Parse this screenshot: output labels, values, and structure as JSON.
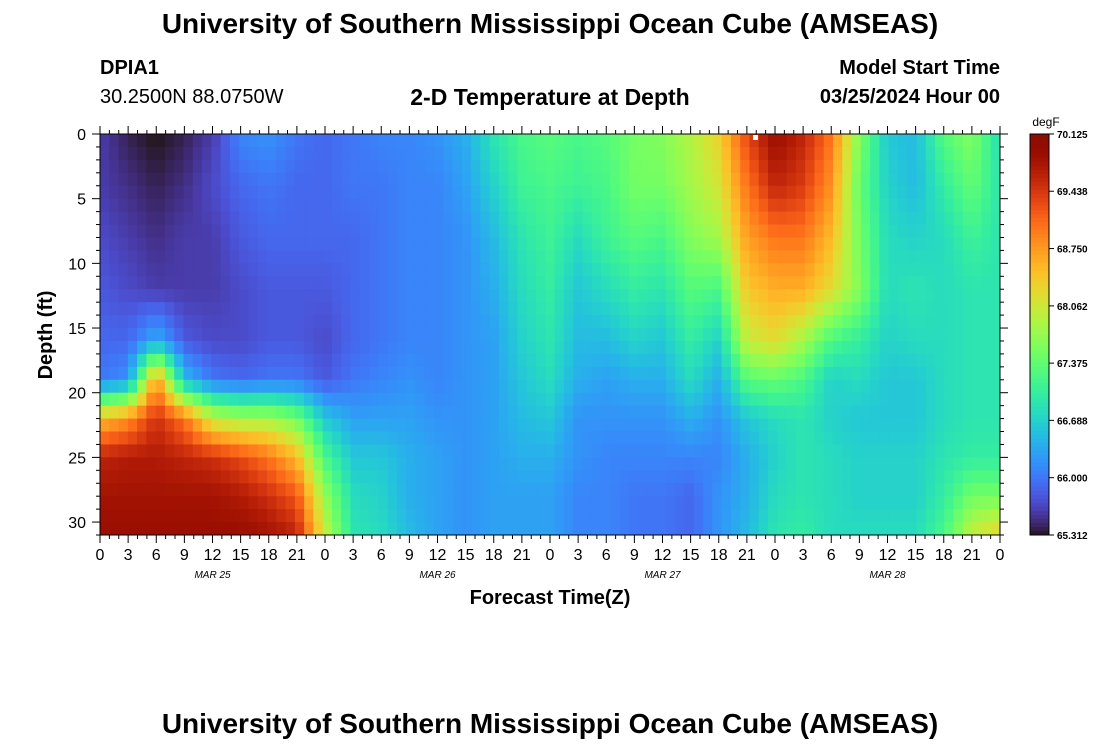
{
  "page": {
    "title_top": "University of Southern Mississippi Ocean Cube (AMSEAS)",
    "title_bottom": "University of Southern Mississippi Ocean Cube (AMSEAS)",
    "station_id": "DPIA1",
    "station_coords": "30.2500N  88.0750W",
    "plot_title": "2-D Temperature at Depth",
    "model_start_label": "Model Start Time",
    "model_start_value": "03/25/2024 Hour 00"
  },
  "chart_data": {
    "type": "heatmap",
    "xlabel": "Forecast Time(Z)",
    "ylabel": "Depth (ft)",
    "x_unit": "hours from 03/25/2024 00Z",
    "x_range": [
      0,
      96
    ],
    "ylim": [
      0,
      31
    ],
    "y_inverted": true,
    "x_tick_labels": [
      "0",
      "3",
      "6",
      "9",
      "12",
      "15",
      "18",
      "21",
      "0",
      "3",
      "6",
      "9",
      "12",
      "15",
      "18",
      "21",
      "0",
      "3",
      "6",
      "9",
      "12",
      "15",
      "18",
      "21",
      "0",
      "3",
      "6",
      "9",
      "12",
      "15",
      "18",
      "21",
      "0"
    ],
    "y_ticks": [
      0,
      5,
      10,
      15,
      20,
      25,
      30
    ],
    "date_labels": [
      {
        "text": "MAR 25",
        "hour": 12
      },
      {
        "text": "MAR 26",
        "hour": 36
      },
      {
        "text": "MAR 27",
        "hour": 60
      },
      {
        "text": "MAR 28",
        "hour": 84
      }
    ],
    "colorbar": {
      "unit": "degF",
      "min": 65.312,
      "max": 70.125,
      "tick_labels": [
        "70.125",
        "69.438",
        "68.750",
        "68.062",
        "67.375",
        "66.688",
        "66.000",
        "65.312"
      ],
      "colormap": "turbo"
    },
    "grid": false,
    "temperature_degF_profiles": {
      "depths_ft": [
        0,
        4,
        8,
        12,
        16,
        19,
        22,
        25,
        28,
        31
      ],
      "hours": [
        0,
        3,
        6,
        9,
        12,
        15,
        18,
        21,
        24,
        27,
        30,
        33,
        36,
        39,
        42,
        45,
        48,
        51,
        54,
        57,
        60,
        63,
        66,
        69,
        72,
        75,
        78,
        81,
        84,
        87,
        90,
        93,
        96
      ],
      "values": [
        [
          65.6,
          65.6,
          65.7,
          65.8,
          65.9,
          66.0,
          68.5,
          69.6,
          69.8,
          69.9
        ],
        [
          65.4,
          65.5,
          65.6,
          65.7,
          65.9,
          66.2,
          68.8,
          69.7,
          69.8,
          69.9
        ],
        [
          65.3,
          65.4,
          65.5,
          65.6,
          66.4,
          68.8,
          69.5,
          69.7,
          69.8,
          69.9
        ],
        [
          65.4,
          65.5,
          65.6,
          65.6,
          65.8,
          66.5,
          69.0,
          69.6,
          69.8,
          69.9
        ],
        [
          65.6,
          65.7,
          65.6,
          65.6,
          65.7,
          66.0,
          68.0,
          69.5,
          69.8,
          69.9
        ],
        [
          66.1,
          65.9,
          65.8,
          65.7,
          65.7,
          65.9,
          67.8,
          69.3,
          69.7,
          69.9
        ],
        [
          66.2,
          66.0,
          65.9,
          65.8,
          65.8,
          66.0,
          67.8,
          69.0,
          69.5,
          69.8
        ],
        [
          66.0,
          65.9,
          65.9,
          65.8,
          65.8,
          66.0,
          67.5,
          68.5,
          69.2,
          69.6
        ],
        [
          65.9,
          65.9,
          65.9,
          65.8,
          65.7,
          65.8,
          66.6,
          67.2,
          67.7,
          68.0
        ],
        [
          66.0,
          66.0,
          65.9,
          65.9,
          65.9,
          66.0,
          66.3,
          66.6,
          66.8,
          66.9
        ],
        [
          66.1,
          66.0,
          66.0,
          66.0,
          66.0,
          66.1,
          66.3,
          66.6,
          66.7,
          66.8
        ],
        [
          66.1,
          66.1,
          66.1,
          66.1,
          66.1,
          66.2,
          66.3,
          66.4,
          66.4,
          66.5
        ],
        [
          66.2,
          66.1,
          66.1,
          66.1,
          66.1,
          66.1,
          66.2,
          66.3,
          66.3,
          66.3
        ],
        [
          66.4,
          66.3,
          66.2,
          66.2,
          66.2,
          66.2,
          66.2,
          66.2,
          66.2,
          66.2
        ],
        [
          66.9,
          66.7,
          66.5,
          66.4,
          66.3,
          66.3,
          66.3,
          66.3,
          66.3,
          66.3
        ],
        [
          67.2,
          67.1,
          66.9,
          66.8,
          66.7,
          66.6,
          66.5,
          66.4,
          66.3,
          66.3
        ],
        [
          67.3,
          67.2,
          67.1,
          67.0,
          66.9,
          66.8,
          66.6,
          66.4,
          66.3,
          66.3
        ],
        [
          67.2,
          67.1,
          66.8,
          66.6,
          66.5,
          66.4,
          66.2,
          66.2,
          66.1,
          66.1
        ],
        [
          67.3,
          67.2,
          67.1,
          66.8,
          66.5,
          66.3,
          66.2,
          66.1,
          66.1,
          66.1
        ],
        [
          67.5,
          67.5,
          67.3,
          67.0,
          66.7,
          66.4,
          66.2,
          66.1,
          66.0,
          66.0
        ],
        [
          67.6,
          67.5,
          67.2,
          66.9,
          66.6,
          66.4,
          66.2,
          66.1,
          66.0,
          66.0
        ],
        [
          67.9,
          67.8,
          67.6,
          67.3,
          67.0,
          66.8,
          66.4,
          66.1,
          65.9,
          65.9
        ],
        [
          68.3,
          68.1,
          67.8,
          67.2,
          66.7,
          66.4,
          66.2,
          66.1,
          66.2,
          66.2
        ],
        [
          69.3,
          69.0,
          68.7,
          68.4,
          68.0,
          67.3,
          66.6,
          66.4,
          66.4,
          66.5
        ],
        [
          69.9,
          69.6,
          69.0,
          68.6,
          68.2,
          67.4,
          66.8,
          66.7,
          66.8,
          66.9
        ],
        [
          69.6,
          69.4,
          69.0,
          68.6,
          67.8,
          67.2,
          66.9,
          66.9,
          66.9,
          67.0
        ],
        [
          69.0,
          68.8,
          68.5,
          68.2,
          67.2,
          66.7,
          66.7,
          66.8,
          66.8,
          66.8
        ],
        [
          67.6,
          67.4,
          67.5,
          67.6,
          67.0,
          66.8,
          66.6,
          66.7,
          66.7,
          66.8
        ],
        [
          66.6,
          66.7,
          66.8,
          66.8,
          66.7,
          66.6,
          66.6,
          66.7,
          66.7,
          66.8
        ],
        [
          66.5,
          66.5,
          66.7,
          66.9,
          66.8,
          66.6,
          66.6,
          66.7,
          66.7,
          66.8
        ],
        [
          67.3,
          67.0,
          66.8,
          66.8,
          66.8,
          66.8,
          66.8,
          66.9,
          67.0,
          67.2
        ],
        [
          67.6,
          67.4,
          67.1,
          66.9,
          66.9,
          66.9,
          66.9,
          67.0,
          67.5,
          68.0
        ],
        [
          66.8,
          66.9,
          66.9,
          66.9,
          66.9,
          66.9,
          66.9,
          67.0,
          67.5,
          68.3
        ]
      ]
    }
  }
}
